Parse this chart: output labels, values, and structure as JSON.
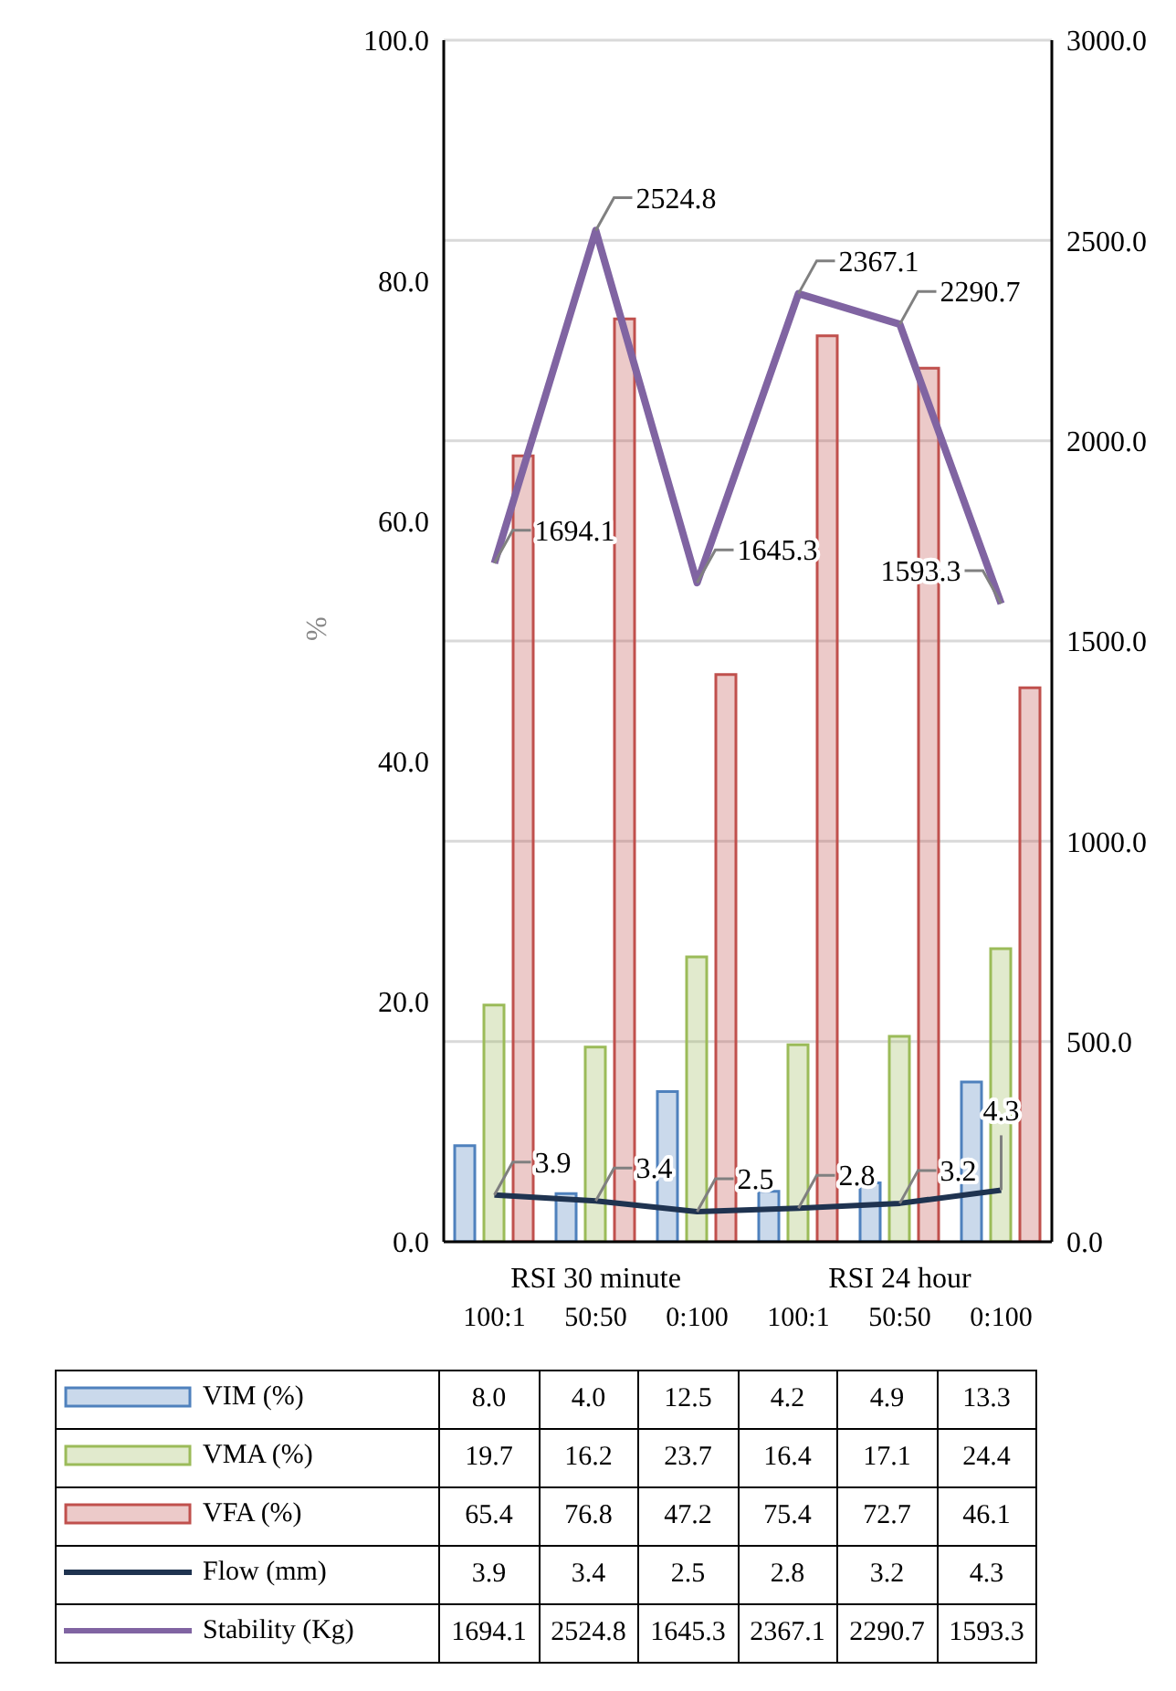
{
  "chart_data": {
    "type": "bar",
    "ylabel": "%",
    "categories": [
      "100:1",
      "50:50",
      "0:100",
      "100:1",
      "50:50",
      "0:100"
    ],
    "annotations": [
      "RSI 30 minute",
      "RSI 24 hour"
    ],
    "series": [
      {
        "name": "VIM (%)",
        "color": "#4f81bd",
        "values": [
          8.0,
          4.0,
          12.5,
          4.2,
          4.9,
          13.3
        ],
        "value_labels": [
          "8.0",
          "4.0",
          "12.5",
          "4.2",
          "4.9",
          "13.3"
        ]
      },
      {
        "name": "VMA (%)",
        "color": "#9bbb59",
        "values": [
          19.7,
          16.2,
          23.7,
          16.4,
          17.1,
          24.4
        ],
        "value_labels": [
          "19.7",
          "16.2",
          "23.7",
          "16.4",
          "17.1",
          "24.4"
        ]
      },
      {
        "name": "VFA (%)",
        "color": "#c0504d",
        "values": [
          65.4,
          76.8,
          47.2,
          75.4,
          72.7,
          46.1
        ],
        "value_labels": [
          "65.4",
          "76.8",
          "47.2",
          "75.4",
          "72.7",
          "46.1"
        ]
      },
      {
        "name": "Flow (mm)",
        "type": "line",
        "color": "#1f3350",
        "values": [
          3.9,
          3.4,
          2.5,
          2.8,
          3.2,
          4.3
        ],
        "value_labels": [
          "3.9",
          "3.4",
          "2.5",
          "2.8",
          "3.2",
          "4.3"
        ]
      },
      {
        "name": "Stability (Kg)",
        "type": "line",
        "axis": "y2",
        "color": "#8064a2",
        "values": [
          1694.1,
          2524.8,
          1645.3,
          2367.1,
          2290.7,
          1593.3
        ],
        "value_labels": [
          "1694.1",
          "2524.8",
          "1645.3",
          "2367.1",
          "2290.7",
          "1593.3"
        ]
      }
    ],
    "ylim": [
      0,
      100
    ],
    "yticks": [
      {
        "value": 0,
        "label": "0.0"
      },
      {
        "value": 20,
        "label": "20.0"
      },
      {
        "value": 40,
        "label": "40.0"
      },
      {
        "value": 60,
        "label": "60.0"
      },
      {
        "value": 80,
        "label": "80.0"
      },
      {
        "value": 100,
        "label": "100.0"
      }
    ],
    "y2lim": [
      0,
      3000
    ],
    "y2ticks": [
      {
        "value": 0,
        "label": "0.0"
      },
      {
        "value": 500,
        "label": "500.0"
      },
      {
        "value": 1000,
        "label": "1000.0"
      },
      {
        "value": 1500,
        "label": "1500.0"
      },
      {
        "value": 2000,
        "label": "2000.0"
      },
      {
        "value": 2500,
        "label": "2500.0"
      },
      {
        "value": 3000,
        "label": "3000.0"
      }
    ],
    "grid": "y2",
    "legend": "bottom",
    "data_labels": true,
    "marker": "none",
    "line_style": "solid"
  }
}
